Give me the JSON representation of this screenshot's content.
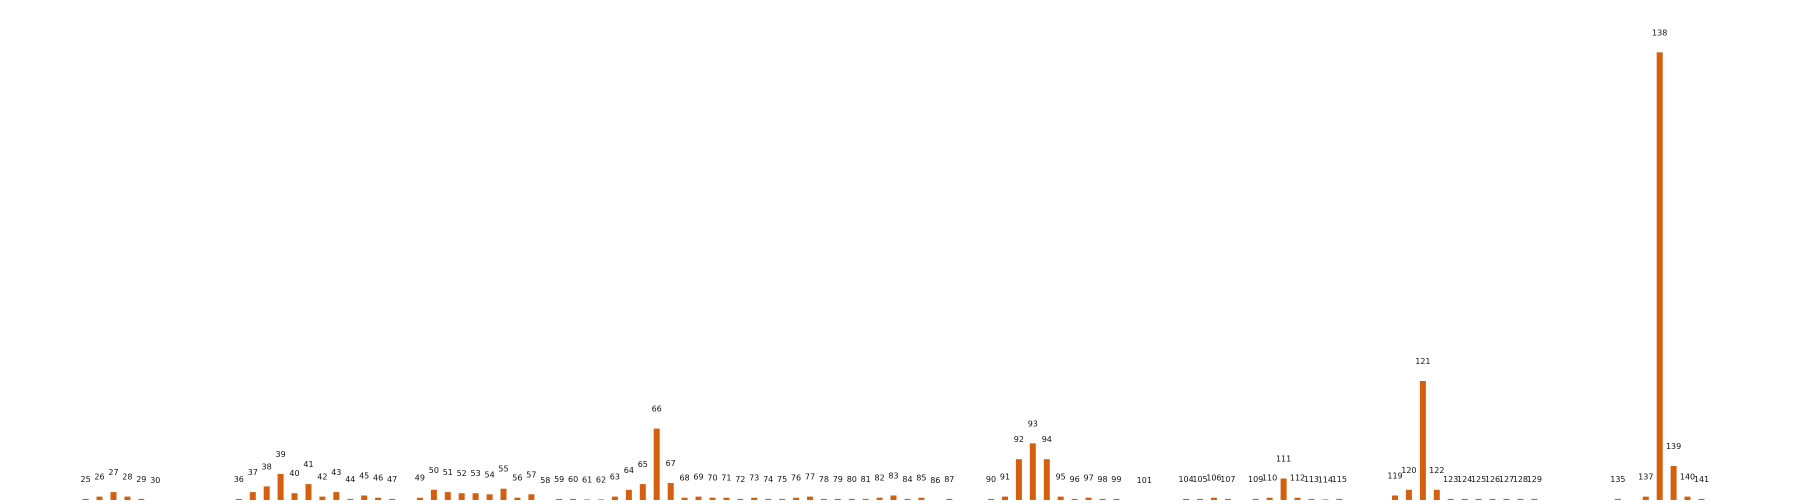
{
  "colors": {
    "bar": "#d4600f",
    "background": "#ffffff",
    "label": "#111111"
  },
  "chart_data": {
    "type": "bar",
    "title": "",
    "xlabel": "",
    "ylabel": "",
    "grid": false,
    "axes_visible": false,
    "data_labels_show": "category",
    "categories": [
      "25",
      "26",
      "27",
      "28",
      "29",
      "30",
      "36",
      "37",
      "38",
      "39",
      "40",
      "41",
      "42",
      "43",
      "44",
      "45",
      "46",
      "47",
      "49",
      "50",
      "51",
      "52",
      "53",
      "54",
      "55",
      "56",
      "57",
      "58",
      "59",
      "60",
      "61",
      "62",
      "63",
      "64",
      "65",
      "66",
      "67",
      "68",
      "69",
      "70",
      "71",
      "72",
      "73",
      "74",
      "75",
      "76",
      "77",
      "78",
      "79",
      "80",
      "81",
      "82",
      "83",
      "84",
      "85",
      "86",
      "87",
      "90",
      "91",
      "92",
      "93",
      "94",
      "95",
      "96",
      "97",
      "98",
      "99",
      "101",
      "104",
      "105",
      "106",
      "107",
      "109",
      "110",
      "111",
      "112",
      "113",
      "114",
      "115",
      "119",
      "120",
      "121",
      "122",
      "123",
      "124",
      "125",
      "126",
      "127",
      "128",
      "129",
      "135",
      "137",
      "138",
      "139",
      "140",
      "141"
    ],
    "values": [
      0.1,
      0.3,
      0.7,
      0.3,
      0.1,
      0,
      0.1,
      0.7,
      1.2,
      2.3,
      0.6,
      1.4,
      0.3,
      0.7,
      0.1,
      0.4,
      0.2,
      0.1,
      0.2,
      0.9,
      0.7,
      0.6,
      0.6,
      0.5,
      1.0,
      0.2,
      0.5,
      0,
      0.1,
      0.1,
      0.05,
      0.05,
      0.3,
      0.9,
      1.4,
      6.3,
      1.5,
      0.2,
      0.3,
      0.2,
      0.2,
      0.1,
      0.2,
      0.1,
      0.1,
      0.2,
      0.3,
      0.1,
      0.1,
      0.1,
      0.1,
      0.2,
      0.4,
      0.1,
      0.2,
      0,
      0.1,
      0.1,
      0.3,
      3.6,
      5.0,
      3.6,
      0.3,
      0.1,
      0.2,
      0.1,
      0.1,
      0,
      0.1,
      0.1,
      0.2,
      0.1,
      0.1,
      0.2,
      1.9,
      0.2,
      0.1,
      0.05,
      0.1,
      0.4,
      0.9,
      10.5,
      0.9,
      0.1,
      0.1,
      0.1,
      0.1,
      0.1,
      0.1,
      0.1,
      0.1,
      0.3,
      39.5,
      3.0,
      0.3,
      0.1
    ],
    "ylim": [
      0,
      42
    ]
  }
}
